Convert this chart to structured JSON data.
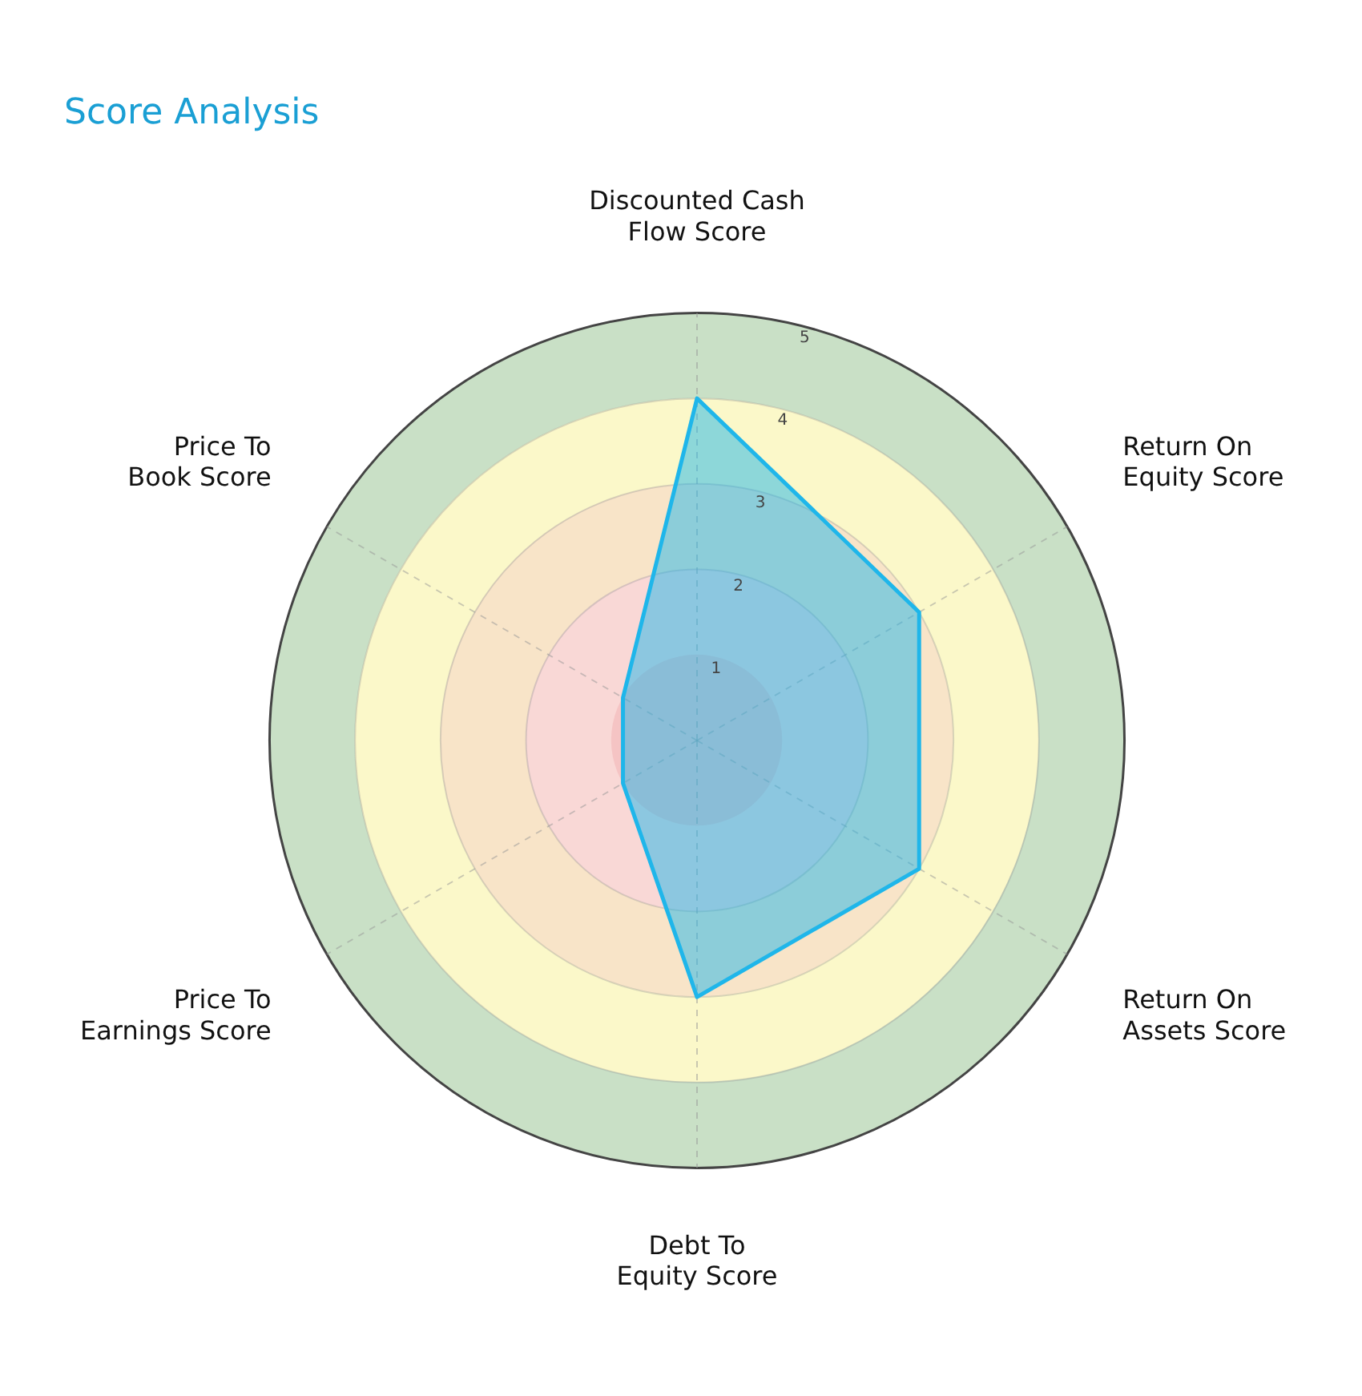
{
  "chart_data": {
    "type": "radar",
    "title": "Score Analysis",
    "categories": [
      "Discounted Cash Flow Score",
      "Return On Equity Score",
      "Return On Assets Score",
      "Debt To Equity Score",
      "Price To Earnings Score",
      "Price To Book Score"
    ],
    "series": [
      {
        "color": "#1fb6ea",
        "values": [
          4,
          3,
          3,
          3,
          1,
          1
        ]
      }
    ],
    "ylim": [
      0,
      5
    ],
    "yticks": [
      1,
      2,
      3,
      4,
      5
    ],
    "grid": true,
    "legend": false,
    "marker": "none"
  }
}
